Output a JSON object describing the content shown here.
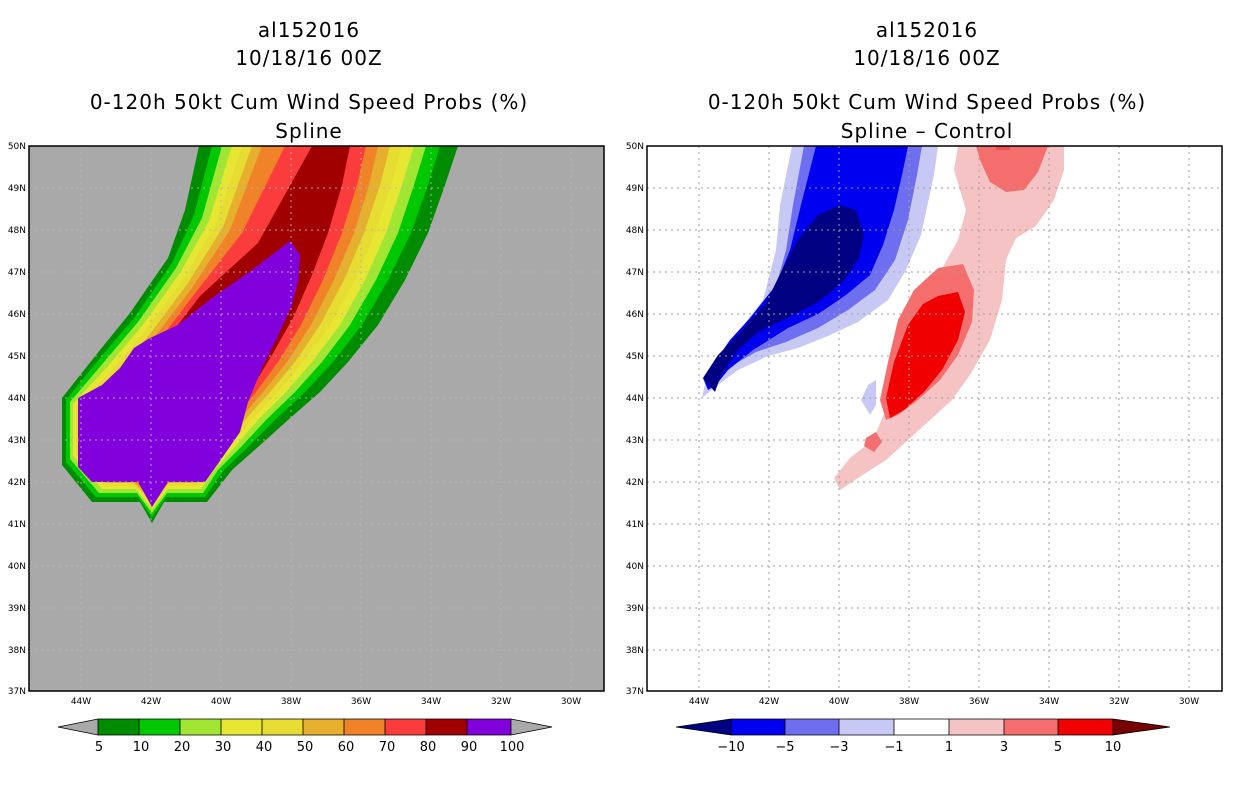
{
  "panels": [
    {
      "storm_id": "al152016",
      "datetime": "10/18/16 00Z",
      "product": "0-120h 50kt Cum Wind Speed Probs (%)",
      "subtitle": "Spline"
    },
    {
      "storm_id": "al152016",
      "datetime": "10/18/16 00Z",
      "product": "0-120h 50kt Cum Wind Speed Probs (%)",
      "subtitle": "Spline – Control"
    }
  ],
  "chart_data": [
    {
      "type": "heatmap",
      "title": "0-120h 50kt Cum Wind Speed Probs (%)",
      "subtitle": "Spline",
      "lon_range": [
        -45.5,
        -29
      ],
      "lat_range": [
        37,
        50
      ],
      "x_ticks": [
        -44,
        -42,
        -40,
        -38,
        -36,
        -34,
        -32,
        -30
      ],
      "x_tick_labels": [
        "44W",
        "42W",
        "40W",
        "38W",
        "36W",
        "34W",
        "32W",
        "30W"
      ],
      "y_ticks": [
        37,
        38,
        39,
        40,
        41,
        42,
        43,
        44,
        45,
        46,
        47,
        48,
        49,
        50
      ],
      "y_tick_labels": [
        "37N",
        "38N",
        "39N",
        "40N",
        "41N",
        "42N",
        "43N",
        "44N",
        "45N",
        "46N",
        "47N",
        "48N",
        "49N",
        "50N"
      ],
      "background_color": "#a9a9a9",
      "gridlines": true,
      "colorbar": {
        "levels": [
          "5",
          "10",
          "20",
          "30",
          "40",
          "50",
          "60",
          "70",
          "80",
          "90",
          "100"
        ],
        "colors": [
          "#008c00",
          "#00c800",
          "#a0e632",
          "#e6e633",
          "#e6dc32",
          "#e6af2d",
          "#f08228",
          "#fa3c3c",
          "#a00000",
          "#8200dc"
        ],
        "end_color": "#a9a9a9"
      },
      "contour_bands": [
        {
          "min": 5,
          "max": 10,
          "color": "#008c00"
        },
        {
          "min": 10,
          "max": 20,
          "color": "#00c800"
        },
        {
          "min": 20,
          "max": 30,
          "color": "#a0e632"
        },
        {
          "min": 30,
          "max": 40,
          "color": "#e6e633"
        },
        {
          "min": 40,
          "max": 50,
          "color": "#e6dc32"
        },
        {
          "min": 50,
          "max": 60,
          "color": "#e6af2d"
        },
        {
          "min": 60,
          "max": 70,
          "color": "#f08228"
        },
        {
          "min": 70,
          "max": 80,
          "color": "#fa3c3c"
        },
        {
          "min": 80,
          "max": 90,
          "color": "#a00000"
        },
        {
          "min": 90,
          "max": 100,
          "color": "#8200dc"
        }
      ]
    },
    {
      "type": "heatmap",
      "title": "0-120h 50kt Cum Wind Speed Probs (%)",
      "subtitle": "Spline – Control",
      "lon_range": [
        -45.5,
        -29
      ],
      "lat_range": [
        37,
        50
      ],
      "x_ticks": [
        -44,
        -42,
        -40,
        -38,
        -36,
        -34,
        -32,
        -30
      ],
      "x_tick_labels": [
        "44W",
        "42W",
        "40W",
        "38W",
        "36W",
        "34W",
        "32W",
        "30W"
      ],
      "y_ticks": [
        37,
        38,
        39,
        40,
        41,
        42,
        43,
        44,
        45,
        46,
        47,
        48,
        49,
        50
      ],
      "y_tick_labels": [
        "37N",
        "38N",
        "39N",
        "40N",
        "41N",
        "42N",
        "43N",
        "44N",
        "45N",
        "46N",
        "47N",
        "48N",
        "49N",
        "50N"
      ],
      "background_color": "#ffffff",
      "gridlines": true,
      "colorbar": {
        "levels": [
          "−10",
          "−5",
          "−3",
          "−1",
          "1",
          "3",
          "5",
          "10"
        ],
        "colors": [
          "#000082",
          "#0000f0",
          "#6e6ef0",
          "#c8c8f5",
          "#ffffff",
          "#f5c3c3",
          "#f56e6e",
          "#f00000"
        ],
        "low_end_color": "#000082",
        "high_end_color": "#780000"
      },
      "contour_bands": [
        {
          "min": -10,
          "max": -5,
          "color": "#0000f0"
        },
        {
          "min": -5,
          "max": -3,
          "color": "#6e6ef0"
        },
        {
          "min": -3,
          "max": -1,
          "color": "#c8c8f5"
        },
        {
          "min": 1,
          "max": 3,
          "color": "#f5c3c3"
        },
        {
          "min": 3,
          "max": 5,
          "color": "#f56e6e"
        },
        {
          "min": 5,
          "max": 10,
          "color": "#f00000"
        },
        {
          "min": -100,
          "max": -10,
          "color": "#000082"
        }
      ]
    }
  ]
}
